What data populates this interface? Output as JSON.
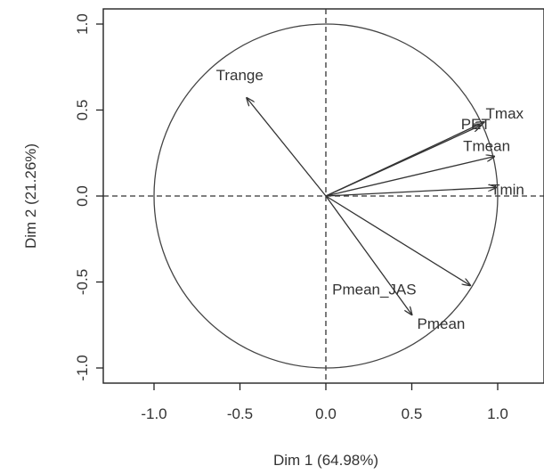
{
  "chart_data": {
    "type": "scatter",
    "subtype": "pca-variables-factor-map",
    "title": "",
    "xlabel": "Dim 1 (64.98%)",
    "ylabel": "Dim 2 (21.26%)",
    "xlim": [
      -1.2,
      1.2
    ],
    "ylim": [
      -1.1,
      1.1
    ],
    "x_ticks": [
      -1.0,
      -0.5,
      0.0,
      0.5,
      1.0
    ],
    "x_tick_labels": [
      "-1.0",
      "-0.5",
      "0.0",
      "0.5",
      "1.0"
    ],
    "y_ticks": [
      -1.0,
      -0.5,
      0.0,
      0.5,
      1.0
    ],
    "y_tick_labels": [
      "-1.0",
      "-0.5",
      "0.0",
      "0.5",
      "1.0"
    ],
    "grid": false,
    "unit_circle": true,
    "reference_lines": [
      "x=0 dashed",
      "y=0 dashed"
    ],
    "colors": {
      "arrows": "#333333",
      "circle": "#444444",
      "frame": "#222222",
      "text": "#333333"
    },
    "variables": [
      {
        "name": "Trange",
        "x": -0.46,
        "y": 0.57
      },
      {
        "name": "PET",
        "x": 0.9,
        "y": 0.41
      },
      {
        "name": "Tmax",
        "x": 0.92,
        "y": 0.43
      },
      {
        "name": "Tmean",
        "x": 0.98,
        "y": 0.23
      },
      {
        "name": "Tmin",
        "x": 0.99,
        "y": 0.05
      },
      {
        "name": "Pmean_JAS",
        "x": 0.84,
        "y": -0.52
      },
      {
        "name": "Pmean",
        "x": 0.5,
        "y": -0.69
      }
    ]
  }
}
